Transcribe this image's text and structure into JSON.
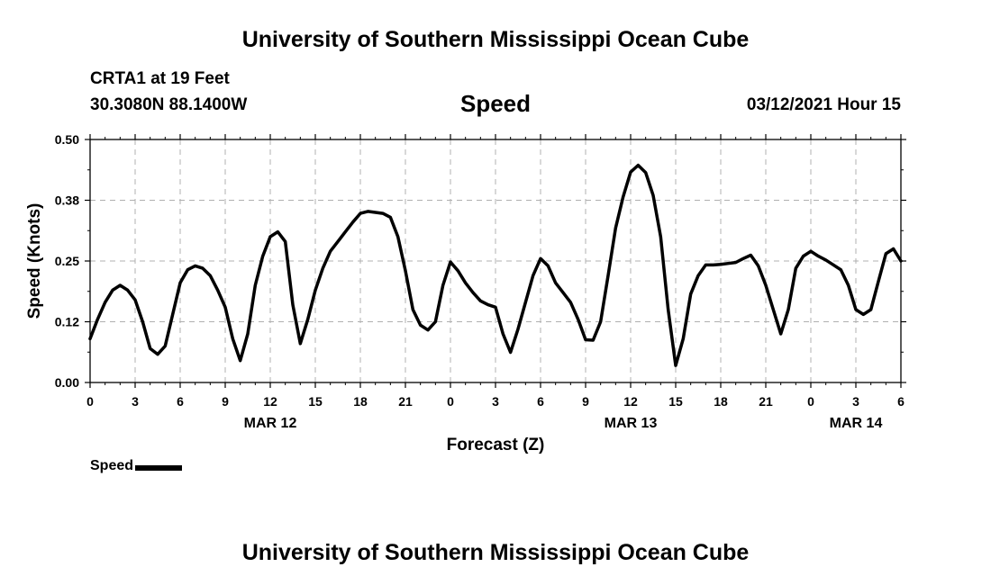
{
  "header": {
    "title": "University of Southern Mississippi Ocean Cube",
    "station": "CRTA1 at 19 Feet",
    "coordinates": "30.3080N 88.1400W",
    "datetime": "03/12/2021 Hour 15"
  },
  "footer": {
    "title": "University of Southern Mississippi Ocean Cube"
  },
  "legend": {
    "label": "Speed"
  },
  "chart_data": {
    "type": "line",
    "title": "Speed",
    "xlabel": "Forecast (Z)",
    "ylabel": "Speed (Knots)",
    "ylim": [
      0,
      0.5
    ],
    "xlim": [
      0,
      54
    ],
    "grid": true,
    "line_color": "#000000",
    "y_ticks": [
      {
        "value": 0.0,
        "label": "0.00"
      },
      {
        "value": 0.125,
        "label": "0.12"
      },
      {
        "value": 0.25,
        "label": "0.25"
      },
      {
        "value": 0.375,
        "label": "0.38"
      },
      {
        "value": 0.5,
        "label": "0.50"
      }
    ],
    "x_ticks": [
      {
        "value": 0,
        "label": "0"
      },
      {
        "value": 3,
        "label": "3"
      },
      {
        "value": 6,
        "label": "6"
      },
      {
        "value": 9,
        "label": "9"
      },
      {
        "value": 12,
        "label": "12"
      },
      {
        "value": 15,
        "label": "15"
      },
      {
        "value": 18,
        "label": "18"
      },
      {
        "value": 21,
        "label": "21"
      },
      {
        "value": 24,
        "label": "0"
      },
      {
        "value": 27,
        "label": "3"
      },
      {
        "value": 30,
        "label": "6"
      },
      {
        "value": 33,
        "label": "9"
      },
      {
        "value": 36,
        "label": "12"
      },
      {
        "value": 39,
        "label": "15"
      },
      {
        "value": 42,
        "label": "18"
      },
      {
        "value": 45,
        "label": "21"
      },
      {
        "value": 48,
        "label": "0"
      },
      {
        "value": 51,
        "label": "3"
      },
      {
        "value": 54,
        "label": "6"
      }
    ],
    "date_labels": [
      {
        "value": 12,
        "label": "MAR 12"
      },
      {
        "value": 36,
        "label": "MAR 13"
      },
      {
        "value": 51,
        "label": "MAR 14"
      }
    ],
    "series": [
      {
        "name": "Speed",
        "x": [
          0,
          0.5,
          1,
          1.5,
          2,
          2.5,
          3,
          3.5,
          4,
          4.5,
          5,
          5.5,
          6,
          6.5,
          7,
          7.5,
          8,
          8.5,
          9,
          9.5,
          10,
          10.5,
          11,
          11.5,
          12,
          12.5,
          13,
          13.5,
          14,
          14.5,
          15,
          15.5,
          16,
          16.5,
          17,
          17.5,
          18,
          18.5,
          19,
          19.5,
          20,
          20.5,
          21,
          21.5,
          22,
          22.5,
          23,
          23.5,
          24,
          24.5,
          25,
          25.5,
          26,
          26.5,
          27,
          27.5,
          28,
          28.5,
          29,
          29.5,
          30,
          30.5,
          31,
          31.5,
          32,
          32.5,
          33,
          33.5,
          34,
          34.5,
          35,
          35.5,
          36,
          36.5,
          37,
          37.5,
          38,
          38.5,
          39,
          39.5,
          40,
          40.5,
          41,
          41.5,
          42,
          42.5,
          43,
          43.5,
          44,
          44.5,
          45,
          45.5,
          46,
          46.5,
          47,
          47.5,
          48,
          48.5,
          49,
          49.5,
          50,
          50.5,
          51,
          51.5,
          52,
          52.5,
          53,
          53.5,
          54
        ],
        "values": [
          0.09,
          0.13,
          0.165,
          0.19,
          0.2,
          0.19,
          0.17,
          0.125,
          0.07,
          0.058,
          0.075,
          0.14,
          0.205,
          0.232,
          0.24,
          0.235,
          0.22,
          0.19,
          0.155,
          0.09,
          0.045,
          0.1,
          0.2,
          0.26,
          0.3,
          0.31,
          0.29,
          0.16,
          0.08,
          0.13,
          0.19,
          0.235,
          0.27,
          0.29,
          0.31,
          0.33,
          0.348,
          0.352,
          0.35,
          0.348,
          0.34,
          0.3,
          0.23,
          0.15,
          0.118,
          0.108,
          0.125,
          0.2,
          0.248,
          0.23,
          0.205,
          0.185,
          0.168,
          0.16,
          0.155,
          0.1,
          0.062,
          0.11,
          0.165,
          0.22,
          0.255,
          0.24,
          0.205,
          0.185,
          0.165,
          0.13,
          0.088,
          0.087,
          0.125,
          0.22,
          0.318,
          0.382,
          0.433,
          0.447,
          0.432,
          0.385,
          0.3,
          0.15,
          0.035,
          0.09,
          0.182,
          0.22,
          0.242,
          0.242,
          0.243,
          0.245,
          0.247,
          0.255,
          0.262,
          0.24,
          0.2,
          0.15,
          0.1,
          0.15,
          0.235,
          0.26,
          0.27,
          0.26,
          0.252,
          0.242,
          0.232,
          0.2,
          0.15,
          0.14,
          0.15,
          0.208,
          0.265,
          0.275,
          0.25
        ]
      }
    ]
  }
}
